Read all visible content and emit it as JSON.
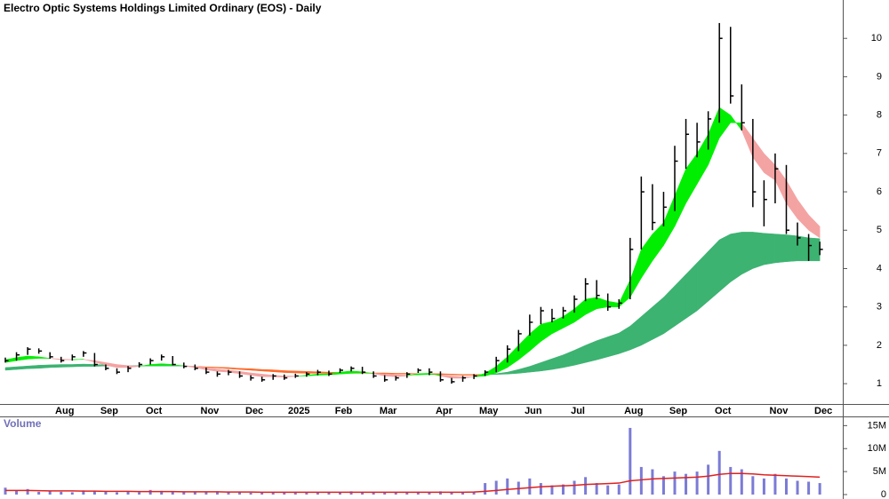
{
  "chart_data": [
    {
      "type": "ohlc",
      "title": "Electro Optic Systems Holdings Limited Ordinary (EOS) - Daily",
      "categories": [
        null,
        null,
        null,
        null,
        null,
        "Aug",
        null,
        null,
        null,
        "Sep",
        null,
        null,
        null,
        "Oct",
        null,
        null,
        null,
        null,
        "Nov",
        null,
        null,
        null,
        "Dec",
        null,
        null,
        null,
        "2025",
        null,
        null,
        null,
        "Feb",
        null,
        null,
        null,
        "Mar",
        null,
        null,
        null,
        null,
        "Apr",
        null,
        null,
        null,
        "May",
        null,
        null,
        null,
        "Jun",
        null,
        null,
        null,
        "Jul",
        null,
        null,
        null,
        null,
        "Aug",
        null,
        null,
        null,
        "Sep",
        null,
        null,
        null,
        "Oct",
        null,
        null,
        null,
        null,
        "Nov",
        null,
        null,
        null,
        "Dec"
      ],
      "high": [
        1.68,
        1.82,
        1.95,
        1.92,
        1.82,
        1.7,
        1.76,
        1.85,
        1.8,
        1.5,
        1.4,
        1.46,
        1.56,
        1.66,
        1.76,
        1.72,
        1.55,
        1.5,
        1.42,
        1.32,
        1.36,
        1.32,
        1.22,
        1.18,
        1.25,
        1.24,
        1.26,
        1.3,
        1.36,
        1.34,
        1.4,
        1.45,
        1.44,
        1.32,
        1.22,
        1.2,
        1.3,
        1.4,
        1.4,
        1.32,
        1.15,
        1.2,
        1.25,
        1.35,
        1.7,
        2.0,
        2.4,
        2.8,
        3.0,
        2.95,
        3.0,
        3.3,
        3.75,
        3.7,
        3.35,
        3.2,
        4.8,
        6.4,
        6.2,
        6.0,
        7.2,
        7.9,
        7.8,
        8.1,
        10.4,
        10.3,
        8.8,
        7.9,
        6.3,
        7.0,
        6.7,
        5.2,
        4.9,
        4.7
      ],
      "low": [
        1.55,
        1.6,
        1.75,
        1.78,
        1.65,
        1.55,
        1.6,
        1.7,
        1.45,
        1.35,
        1.25,
        1.3,
        1.42,
        1.5,
        1.6,
        1.48,
        1.4,
        1.35,
        1.25,
        1.18,
        1.22,
        1.15,
        1.08,
        1.05,
        1.1,
        1.1,
        1.15,
        1.18,
        1.22,
        1.2,
        1.28,
        1.32,
        1.25,
        1.15,
        1.05,
        1.08,
        1.15,
        1.28,
        1.22,
        1.05,
        1.0,
        1.05,
        1.12,
        1.2,
        1.3,
        1.55,
        1.85,
        2.25,
        2.55,
        2.6,
        2.7,
        2.85,
        3.15,
        3.2,
        2.9,
        2.95,
        3.2,
        4.5,
        5.0,
        5.1,
        5.5,
        6.6,
        6.9,
        7.1,
        7.8,
        8.3,
        7.6,
        5.6,
        5.1,
        5.7,
        4.9,
        4.6,
        4.2,
        4.35
      ],
      "close": [
        1.6,
        1.75,
        1.9,
        1.85,
        1.7,
        1.6,
        1.7,
        1.8,
        1.5,
        1.4,
        1.3,
        1.4,
        1.5,
        1.6,
        1.7,
        1.5,
        1.45,
        1.4,
        1.3,
        1.25,
        1.3,
        1.2,
        1.15,
        1.1,
        1.2,
        1.15,
        1.2,
        1.25,
        1.3,
        1.25,
        1.35,
        1.4,
        1.3,
        1.2,
        1.1,
        1.15,
        1.25,
        1.35,
        1.3,
        1.1,
        1.05,
        1.15,
        1.2,
        1.3,
        1.6,
        1.9,
        2.3,
        2.6,
        2.9,
        2.7,
        2.9,
        3.2,
        3.6,
        3.3,
        3.0,
        3.1,
        4.5,
        6.0,
        5.2,
        5.6,
        6.8,
        7.5,
        7.3,
        7.9,
        10.0,
        8.5,
        7.8,
        6.0,
        5.8,
        6.6,
        5.0,
        4.8,
        4.6,
        4.5
      ],
      "fast_short": [
        1.62,
        1.68,
        1.72,
        1.7,
        1.66,
        1.62,
        1.62,
        1.64,
        1.56,
        1.48,
        1.42,
        1.42,
        1.45,
        1.5,
        1.52,
        1.5,
        1.46,
        1.42,
        1.36,
        1.32,
        1.3,
        1.26,
        1.22,
        1.18,
        1.18,
        1.17,
        1.19,
        1.22,
        1.25,
        1.26,
        1.3,
        1.33,
        1.31,
        1.26,
        1.2,
        1.18,
        1.2,
        1.26,
        1.27,
        1.2,
        1.14,
        1.14,
        1.18,
        1.27,
        1.45,
        1.7,
        2.0,
        2.3,
        2.55,
        2.62,
        2.75,
        2.95,
        3.2,
        3.25,
        3.15,
        3.1,
        3.7,
        4.5,
        4.9,
        5.2,
        5.9,
        6.6,
        7.0,
        7.5,
        8.2,
        8.0,
        7.6,
        6.9,
        6.5,
        6.3,
        5.7,
        5.3,
        5.0,
        4.8
      ],
      "fast_long": [
        1.55,
        1.6,
        1.64,
        1.66,
        1.66,
        1.64,
        1.63,
        1.63,
        1.6,
        1.55,
        1.5,
        1.47,
        1.46,
        1.47,
        1.48,
        1.48,
        1.47,
        1.45,
        1.42,
        1.38,
        1.35,
        1.32,
        1.28,
        1.25,
        1.22,
        1.2,
        1.2,
        1.2,
        1.22,
        1.23,
        1.25,
        1.27,
        1.28,
        1.27,
        1.25,
        1.23,
        1.22,
        1.23,
        1.24,
        1.23,
        1.2,
        1.18,
        1.18,
        1.2,
        1.28,
        1.42,
        1.62,
        1.85,
        2.1,
        2.3,
        2.45,
        2.6,
        2.8,
        2.95,
        3.0,
        3.0,
        3.25,
        3.75,
        4.2,
        4.6,
        5.1,
        5.7,
        6.2,
        6.7,
        7.4,
        7.8,
        7.8,
        7.4,
        7.0,
        6.7,
        6.3,
        5.8,
        5.4,
        5.1
      ],
      "slow_short": [
        1.42,
        1.44,
        1.46,
        1.48,
        1.49,
        1.5,
        1.5,
        1.51,
        1.5,
        1.49,
        1.48,
        1.47,
        1.47,
        1.47,
        1.47,
        1.47,
        1.46,
        1.45,
        1.43,
        1.41,
        1.39,
        1.37,
        1.35,
        1.33,
        1.31,
        1.29,
        1.28,
        1.27,
        1.27,
        1.27,
        1.27,
        1.27,
        1.27,
        1.27,
        1.26,
        1.25,
        1.25,
        1.25,
        1.25,
        1.24,
        1.23,
        1.22,
        1.22,
        1.23,
        1.26,
        1.3,
        1.37,
        1.45,
        1.55,
        1.65,
        1.75,
        1.87,
        2.0,
        2.12,
        2.22,
        2.32,
        2.5,
        2.75,
        3.0,
        3.25,
        3.55,
        3.85,
        4.15,
        4.45,
        4.75,
        4.9,
        4.95,
        4.95,
        4.92,
        4.9,
        4.88,
        4.85,
        4.8,
        4.78
      ],
      "slow_long": [
        1.35,
        1.37,
        1.39,
        1.4,
        1.42,
        1.43,
        1.44,
        1.45,
        1.45,
        1.46,
        1.46,
        1.46,
        1.46,
        1.46,
        1.46,
        1.46,
        1.46,
        1.45,
        1.44,
        1.43,
        1.42,
        1.4,
        1.39,
        1.37,
        1.36,
        1.34,
        1.33,
        1.32,
        1.31,
        1.3,
        1.29,
        1.29,
        1.28,
        1.28,
        1.28,
        1.27,
        1.27,
        1.26,
        1.26,
        1.26,
        1.25,
        1.24,
        1.24,
        1.24,
        1.24,
        1.25,
        1.27,
        1.3,
        1.33,
        1.37,
        1.42,
        1.48,
        1.55,
        1.62,
        1.7,
        1.78,
        1.88,
        2.0,
        2.15,
        2.3,
        2.5,
        2.7,
        2.9,
        3.15,
        3.4,
        3.65,
        3.85,
        4.0,
        4.1,
        4.15,
        4.18,
        4.2,
        4.2,
        4.2
      ],
      "bar_color": "#000000",
      "fast_colors": [
        "#00ee00",
        "#f4a3a3"
      ],
      "slow_colors": [
        "#3cb371",
        "#ff6a2a"
      ],
      "ylim": [
        0.47,
        11
      ],
      "yticks": [
        1,
        2,
        3,
        4,
        5,
        6,
        7,
        8,
        9,
        10
      ]
    },
    {
      "type": "bar",
      "title": "Volume",
      "values": [
        1500000,
        800000,
        1200000,
        600000,
        700000,
        600000,
        500000,
        900000,
        700000,
        600000,
        500000,
        600000,
        500000,
        1000000,
        800000,
        600000,
        500000,
        600000,
        500000,
        700000,
        600000,
        500000,
        400000,
        500000,
        500000,
        400000,
        600000,
        500000,
        500000,
        600000,
        500000,
        700000,
        500000,
        400000,
        500000,
        400000,
        600000,
        600000,
        500000,
        700000,
        500000,
        600000,
        500000,
        2500000,
        3000000,
        3500000,
        2800000,
        3500000,
        2500000,
        2000000,
        2200000,
        3000000,
        3800000,
        2500000,
        2000000,
        2200000,
        14500000,
        6000000,
        5500000,
        4000000,
        5000000,
        4500000,
        5000000,
        6500000,
        9500000,
        6000000,
        5500000,
        4000000,
        3500000,
        4500000,
        3500000,
        3000000,
        2800000,
        2500000
      ],
      "average": [
        900000,
        900000,
        900000,
        850000,
        800000,
        800000,
        800000,
        750000,
        750000,
        700000,
        700000,
        700000,
        650000,
        650000,
        650000,
        650000,
        600000,
        600000,
        600000,
        600000,
        550000,
        550000,
        550000,
        500000,
        500000,
        500000,
        500000,
        500000,
        500000,
        500000,
        500000,
        500000,
        500000,
        500000,
        500000,
        500000,
        500000,
        500000,
        500000,
        500000,
        500000,
        500000,
        550000,
        700000,
        900000,
        1100000,
        1300000,
        1500000,
        1700000,
        1800000,
        1900000,
        2000000,
        2200000,
        2300000,
        2400000,
        2500000,
        3000000,
        3200000,
        3400000,
        3500000,
        3600000,
        3700000,
        3800000,
        4000000,
        4400000,
        4600000,
        4600000,
        4500000,
        4300000,
        4200000,
        4100000,
        4000000,
        3900000,
        3800000
      ],
      "color": "#7b7bd6",
      "average_color": "#e02020",
      "ylim": [
        0,
        17000000
      ],
      "yticks": [
        0,
        {
          "value": 5000000,
          "label": "5M"
        },
        {
          "value": 10000000,
          "label": "10M"
        },
        {
          "value": 15000000,
          "label": "15M"
        }
      ]
    }
  ]
}
